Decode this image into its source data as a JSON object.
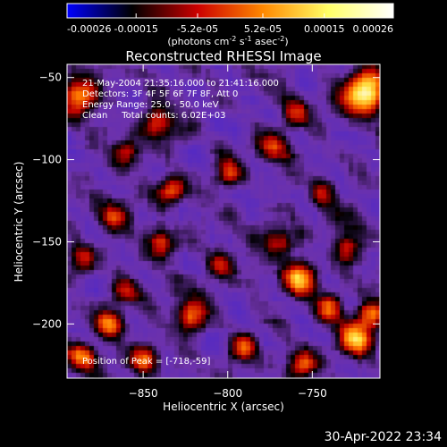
{
  "colorbar": {
    "ticks": [
      "-0.00026",
      "-0.00015",
      "-5.2e-05",
      "5.2e-05",
      "0.00015",
      "0.00026"
    ],
    "units_main": "(photons cm",
    "units_exp1": "-2",
    "units_mid": " s",
    "units_exp2": "-1",
    "units_tail": " asec",
    "units_exp3": "-2",
    "units_close": ")",
    "range": [
      -0.00026,
      0.00026
    ],
    "colors": [
      "#0000ff",
      "#000000",
      "#cc0000",
      "#ff8800",
      "#ffff66",
      "#ffffff"
    ]
  },
  "chart_data": {
    "type": "heatmap",
    "title": "Reconstructed RHESSI Image",
    "xlabel": "Heliocentric X (arcsec)",
    "ylabel": "Heliocentric Y (arcsec)",
    "xlim": [
      -895,
      -710
    ],
    "ylim": [
      -233,
      -42
    ],
    "xticks": [
      -850,
      -800,
      -750
    ],
    "yticks": [
      -50,
      -100,
      -150,
      -200
    ],
    "xtick_labels": [
      "−850",
      "−800",
      "−750"
    ],
    "ytick_labels": [
      "−50",
      "−100",
      "−150",
      "−200"
    ],
    "annotations": [
      "21-May-2004 21:35:16.000 to 21:41:16.000",
      "Detectors: 3F 4F 5F 6F 7F 8F, Att 0",
      "Energy Range: 25.0 - 50.0 keV",
      "Clean     Total counts: 6.02E+03"
    ],
    "peak_label": "Position of Peak = [-718,-59]",
    "peak": [
      -718,
      -59
    ],
    "sources": [
      {
        "x": -718,
        "y": -59,
        "amp": 1.0,
        "r": 9
      },
      {
        "x": -888,
        "y": -62,
        "amp": 0.75,
        "r": 8
      },
      {
        "x": -840,
        "y": -78,
        "amp": 0.55,
        "r": 7
      },
      {
        "x": -760,
        "y": -72,
        "amp": 0.45,
        "r": 6
      },
      {
        "x": -860,
        "y": -95,
        "amp": 0.5,
        "r": 6
      },
      {
        "x": -775,
        "y": -92,
        "amp": 0.5,
        "r": 6
      },
      {
        "x": -832,
        "y": -118,
        "amp": 0.55,
        "r": 6
      },
      {
        "x": -800,
        "y": -108,
        "amp": 0.5,
        "r": 6
      },
      {
        "x": -868,
        "y": -135,
        "amp": 0.45,
        "r": 6
      },
      {
        "x": -745,
        "y": -120,
        "amp": 0.45,
        "r": 6
      },
      {
        "x": -840,
        "y": -150,
        "amp": 0.5,
        "r": 6
      },
      {
        "x": -770,
        "y": -150,
        "amp": 0.45,
        "r": 6
      },
      {
        "x": -885,
        "y": -160,
        "amp": 0.45,
        "r": 6
      },
      {
        "x": -805,
        "y": -165,
        "amp": 0.45,
        "r": 6
      },
      {
        "x": -758,
        "y": -172,
        "amp": 0.75,
        "r": 7
      },
      {
        "x": -740,
        "y": -190,
        "amp": 0.6,
        "r": 6
      },
      {
        "x": -822,
        "y": -195,
        "amp": 0.75,
        "r": 7
      },
      {
        "x": -870,
        "y": -200,
        "amp": 0.55,
        "r": 6
      },
      {
        "x": -725,
        "y": -210,
        "amp": 0.8,
        "r": 7
      },
      {
        "x": -715,
        "y": -195,
        "amp": 0.65,
        "r": 6
      },
      {
        "x": -790,
        "y": -215,
        "amp": 0.6,
        "r": 6
      },
      {
        "x": -850,
        "y": -222,
        "amp": 0.5,
        "r": 6
      },
      {
        "x": -755,
        "y": -225,
        "amp": 0.6,
        "r": 6
      },
      {
        "x": -885,
        "y": -220,
        "amp": 0.65,
        "r": 6
      },
      {
        "x": -730,
        "y": -155,
        "amp": 0.5,
        "r": 6
      },
      {
        "x": -860,
        "y": -180,
        "amp": 0.4,
        "r": 6
      }
    ]
  },
  "timestamp": "30-Apr-2022 23:34"
}
